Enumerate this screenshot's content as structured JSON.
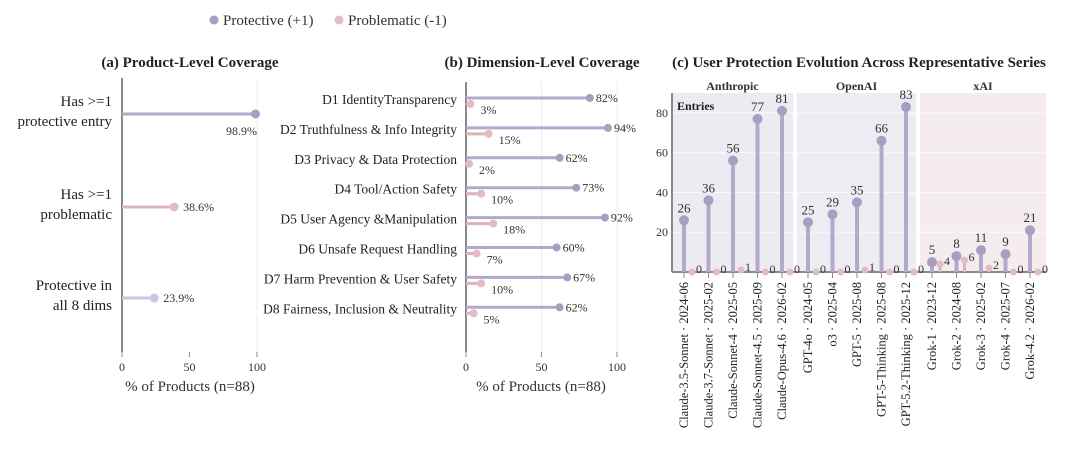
{
  "legend": {
    "items": [
      {
        "label": "Protective (+1)",
        "color": "#a99ec2"
      },
      {
        "label": "Problematic (-1)",
        "color": "#e2bcc2"
      }
    ]
  },
  "colors": {
    "protective": "#b3a9cb",
    "protective_dot": "#a99ec2",
    "problematic": "#dab4ba",
    "problematic_dot": "#e2bcc2",
    "highlight": "#ccc6e4",
    "axis": "#8a8a8a",
    "anthropic_bg": "#edebf2",
    "openai_bg": "#edecf3",
    "xai_bg": "#f5eced"
  },
  "chart_data": [
    {
      "type": "lollipop",
      "title": "(a) Product-Level Coverage",
      "xlabel": "% of Products (n=88)",
      "ylabel": "",
      "xlim": [
        0,
        100
      ],
      "xticks": [
        "0",
        "50",
        "100"
      ],
      "categories": [
        "Has >=1 protective entry",
        "Has >=1 problematic",
        "Protective in all 8 dims"
      ],
      "category_lines": [
        [
          "Has >=1",
          "protective entry"
        ],
        [
          "Has >=1",
          "problematic"
        ],
        [
          "Protective in",
          "all 8 dims"
        ]
      ],
      "values": [
        98.9,
        38.6,
        23.9
      ],
      "value_labels": [
        "98.9%",
        "38.6%",
        "23.9%"
      ],
      "value_kinds": [
        "protective",
        "problematic",
        "highlight"
      ]
    },
    {
      "type": "lollipop",
      "title": "(b) Dimension-Level Coverage",
      "xlabel": "% of Products (n=88)",
      "ylabel": "",
      "xlim": [
        0,
        100
      ],
      "xticks": [
        "0",
        "50",
        "100"
      ],
      "categories": [
        "D1 IdentityTransparency",
        "D2 Truthfulness & Info Integrity",
        "D3 Privacy & Data Protection",
        "D4 Tool/Action Safety",
        "D5 User Agency &Manipulation",
        "D6 Unsafe Request Handling",
        "D7 Harm Prevention & User Safety",
        "D8 Fairness, Inclusion & Neutrality"
      ],
      "series": [
        {
          "name": "Protective (+1)",
          "values": [
            82,
            94,
            62,
            73,
            92,
            60,
            67,
            62
          ],
          "labels": [
            "82%",
            "94%",
            "62%",
            "73%",
            "92%",
            "60%",
            "67%",
            "62%"
          ]
        },
        {
          "name": "Problematic (-1)",
          "values": [
            3,
            15,
            2,
            10,
            18,
            7,
            10,
            5
          ],
          "labels": [
            "3%",
            "15%",
            "2%",
            "10%",
            "18%",
            "7%",
            "10%",
            "5%"
          ]
        }
      ]
    },
    {
      "type": "lollipop",
      "title": "(c) User Protection Evolution Across Representative Series",
      "ylabel": "",
      "ylim": [
        0,
        90
      ],
      "yticks": [
        "20",
        "40",
        "60",
        "80"
      ],
      "annotation": "Entries",
      "groups": [
        {
          "name": "Anthropic",
          "categories": [
            "Claude-3.5-Sonnet · 2024-06",
            "Claude-3.7-Sonnet · 2025-02",
            "Claude-Sonnet-4 · 2025-05",
            "Claude-Sonnet-4.5 · 2025-09",
            "Claude-Opus-4.6 · 2026-02"
          ],
          "protective": [
            26,
            36,
            56,
            77,
            81
          ],
          "protective_labels": [
            "26",
            "36",
            "56",
            "77",
            "81"
          ],
          "problematic": [
            0,
            0,
            1,
            0,
            0
          ],
          "problematic_labels": [
            "0",
            "0",
            "1",
            "0",
            "0"
          ]
        },
        {
          "name": "OpenAI",
          "categories": [
            "GPT-4o · 2024-05",
            "o3 · 2025-04",
            "GPT-5 · 2025-08",
            "GPT-5-Thinking · 2025-08",
            "GPT-5.2-Thinking · 2025-12"
          ],
          "protective": [
            25,
            29,
            35,
            66,
            83
          ],
          "protective_labels": [
            "25",
            "29",
            "35",
            "66",
            "83"
          ],
          "problematic": [
            0,
            0,
            1,
            0,
            0
          ],
          "problematic_labels": [
            "0",
            "0",
            "1",
            "0",
            "0"
          ]
        },
        {
          "name": "xAI",
          "categories": [
            "Grok-1 · 2023-12",
            "Grok-2 · 2024-08",
            "Grok-3 · 2025-02",
            "Grok-4 · 2025-07",
            "Grok-4.2 · 2026-02"
          ],
          "protective": [
            5,
            8,
            11,
            9,
            21
          ],
          "protective_labels": [
            "5",
            "8",
            "11",
            "9",
            "21"
          ],
          "problematic": [
            4,
            6,
            2,
            0,
            0
          ],
          "problematic_labels": [
            "4",
            "6",
            "2",
            "0",
            "0"
          ]
        }
      ]
    }
  ]
}
